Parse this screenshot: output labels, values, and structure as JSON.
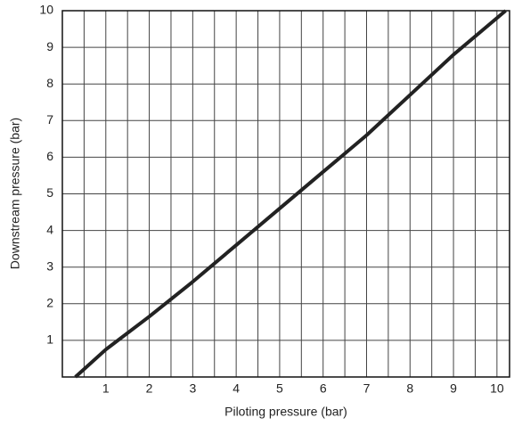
{
  "chart_data": {
    "type": "line",
    "xlabel": "Piloting pressure (bar)",
    "ylabel": "Downstream pressure (bar)",
    "x": [
      0.3,
      1,
      2,
      3,
      4,
      5,
      6,
      7,
      8,
      9,
      10.2
    ],
    "series": [
      {
        "color": "#222222",
        "values": [
          0,
          0.75,
          1.65,
          2.6,
          3.6,
          4.6,
          5.6,
          6.6,
          7.7,
          8.8,
          10
        ]
      }
    ],
    "xlim": [
      0,
      10.29
    ],
    "ylim": [
      0,
      10
    ],
    "xticks": [
      1,
      2,
      3,
      4,
      5,
      6,
      7,
      8,
      9,
      10
    ],
    "x_minor_ticks": [
      0.5,
      1.5,
      2.5,
      3.5,
      4.5,
      5.5,
      6.5,
      7.5,
      8.5,
      9.5
    ],
    "yticks": [
      1,
      2,
      3,
      4,
      5,
      6,
      7,
      8,
      9,
      10
    ],
    "grid": true
  }
}
